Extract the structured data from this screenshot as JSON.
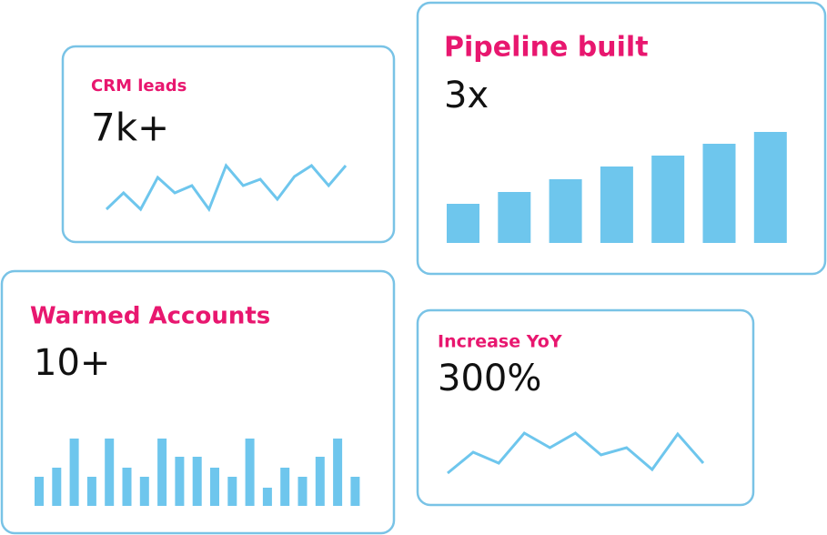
{
  "chart_data": [
    {
      "type": "line",
      "title": "CRM leads",
      "headline": "7k+",
      "color": "#6ec6ed",
      "values": [
        10,
        28,
        10,
        45,
        28,
        36,
        10,
        58,
        36,
        43,
        21,
        46,
        58,
        36,
        58
      ]
    },
    {
      "type": "bar",
      "title": "Pipeline built",
      "headline": "3x",
      "color": "#6ec6ed",
      "values": [
        43,
        56,
        70,
        84,
        96,
        109,
        122
      ]
    },
    {
      "type": "bar",
      "title": "Warmed Accounts",
      "headline": "10+",
      "color": "#6ec6ed",
      "values": [
        32,
        42,
        74,
        32,
        74,
        42,
        32,
        74,
        54,
        54,
        42,
        32,
        74,
        20,
        42,
        32,
        54,
        74,
        32
      ]
    },
    {
      "type": "line",
      "title": "Increase YoY",
      "headline": "300%",
      "color": "#6ec6ed",
      "values": [
        10,
        33,
        21,
        54,
        38,
        54,
        30,
        38,
        14,
        53,
        21
      ]
    }
  ]
}
